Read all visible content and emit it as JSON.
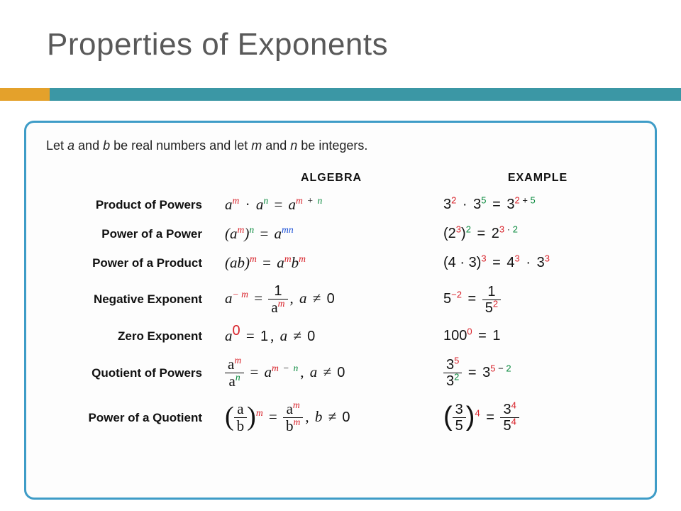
{
  "title": {
    "text": "Properties of Exponents",
    "fontsize": 44,
    "color": "#595959"
  },
  "accent": {
    "gold": "#e4a12b",
    "gold_width": 70,
    "teal": "#3b97a5"
  },
  "box": {
    "border_color": "#3e9cc7",
    "background": "#fdfdfd"
  },
  "colors": {
    "base": "#111111",
    "red": "#d8222a",
    "green": "#0a8a3e",
    "blue": "#1a4fd6"
  },
  "intro": {
    "pre": "Let ",
    "a": "a",
    "mid1": " and ",
    "b": "b",
    "mid2": " be real numbers and let ",
    "m": "m",
    "mid3": " and ",
    "n": "n",
    "post": " be integers."
  },
  "headers": {
    "algebra": "ALGEBRA",
    "example": "EXAMPLE"
  },
  "rows": {
    "r1": {
      "name": "Product of Powers"
    },
    "r2": {
      "name": "Power of a Power"
    },
    "r3": {
      "name": "Power of a Product"
    },
    "r4": {
      "name": "Negative Exponent"
    },
    "r5": {
      "name": "Zero Exponent"
    },
    "r6": {
      "name": "Quotient of Powers"
    },
    "r7": {
      "name": "Power of a Quotient"
    }
  },
  "sym": {
    "a": "a",
    "b": "b",
    "m": "m",
    "n": "n",
    "mn": "mn",
    "dot": "·",
    "eq": "=",
    "neq": "≠",
    "plus": "+",
    "minus": "−",
    "comma": ",",
    "zero": "0",
    "one": "1",
    "ab": "ab"
  },
  "ex": {
    "n2": "2",
    "n3": "3",
    "n4": "4",
    "n5": "5",
    "n32": "3",
    "full4dot3": "4 · 3",
    "n100": "100",
    "p2plus5": "2 + 5",
    "p3dot2": "3 · 2",
    "p5minus2": "5 − 2"
  }
}
